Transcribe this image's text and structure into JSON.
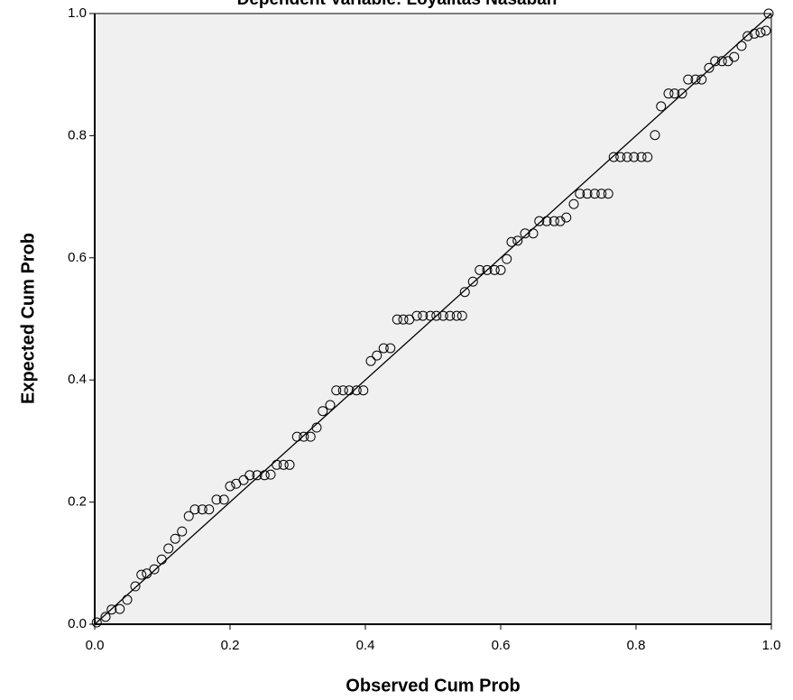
{
  "chart_data": {
    "type": "scatter",
    "title": "Dependent Variable: Loyalitas Nasabah",
    "x_label": "Observed Cum Prob",
    "y_label": "Expected Cum Prob",
    "xlim": [
      0,
      1
    ],
    "ylim": [
      0,
      1
    ],
    "xticks": [
      {
        "value": 0,
        "label": "0.0"
      },
      0.2,
      0.4,
      0.6,
      0.8,
      {
        "value": 1,
        "label": "1.0"
      }
    ],
    "yticks": [
      {
        "value": 0,
        "label": "0.0"
      },
      0.2,
      0.4,
      0.6,
      0.8,
      {
        "value": 1,
        "label": "1.0"
      }
    ],
    "reference_line": true,
    "series": [
      {
        "color": "#000000",
        "x": [
          0.003,
          0.016,
          0.025,
          0.037,
          0.048,
          0.06,
          0.069,
          0.077,
          0.088,
          0.099,
          0.109,
          0.119,
          0.129,
          0.139,
          0.148,
          0.159,
          0.169,
          0.18,
          0.191,
          0.2,
          0.209,
          0.22,
          0.229,
          0.24,
          0.251,
          0.26,
          0.269,
          0.279,
          0.288,
          0.299,
          0.309,
          0.319,
          0.328,
          0.337,
          0.348,
          0.357,
          0.367,
          0.376,
          0.387,
          0.397,
          0.408,
          0.417,
          0.427,
          0.437,
          0.447,
          0.456,
          0.465,
          0.476,
          0.485,
          0.496,
          0.505,
          0.515,
          0.525,
          0.535,
          0.543,
          0.547,
          0.559,
          0.569,
          0.58,
          0.591,
          0.6,
          0.609,
          0.616,
          0.625,
          0.636,
          0.648,
          0.657,
          0.668,
          0.679,
          0.688,
          0.697,
          0.708,
          0.717,
          0.728,
          0.739,
          0.749,
          0.759,
          0.767,
          0.777,
          0.787,
          0.797,
          0.808,
          0.817,
          0.828,
          0.837,
          0.848,
          0.857,
          0.868,
          0.877,
          0.888,
          0.897,
          0.908,
          0.917,
          0.927,
          0.936,
          0.945,
          0.956,
          0.965,
          0.975,
          0.984,
          0.992,
          0.996
        ],
        "values": [
          0.003,
          0.012,
          0.024,
          0.025,
          0.04,
          0.062,
          0.081,
          0.083,
          0.09,
          0.106,
          0.124,
          0.14,
          0.152,
          0.177,
          0.188,
          0.188,
          0.188,
          0.204,
          0.204,
          0.226,
          0.23,
          0.236,
          0.244,
          0.244,
          0.244,
          0.245,
          0.261,
          0.261,
          0.261,
          0.307,
          0.307,
          0.307,
          0.322,
          0.349,
          0.359,
          0.383,
          0.383,
          0.383,
          0.383,
          0.383,
          0.431,
          0.44,
          0.452,
          0.452,
          0.499,
          0.499,
          0.499,
          0.505,
          0.505,
          0.505,
          0.505,
          0.505,
          0.505,
          0.505,
          0.505,
          0.544,
          0.561,
          0.58,
          0.58,
          0.58,
          0.58,
          0.598,
          0.626,
          0.628,
          0.64,
          0.64,
          0.66,
          0.66,
          0.66,
          0.66,
          0.666,
          0.688,
          0.705,
          0.705,
          0.705,
          0.705,
          0.705,
          0.765,
          0.765,
          0.765,
          0.765,
          0.765,
          0.765,
          0.801,
          0.848,
          0.869,
          0.869,
          0.869,
          0.892,
          0.892,
          0.892,
          0.911,
          0.922,
          0.922,
          0.922,
          0.929,
          0.947,
          0.963,
          0.967,
          0.969,
          0.972,
          1.0
        ]
      }
    ]
  }
}
